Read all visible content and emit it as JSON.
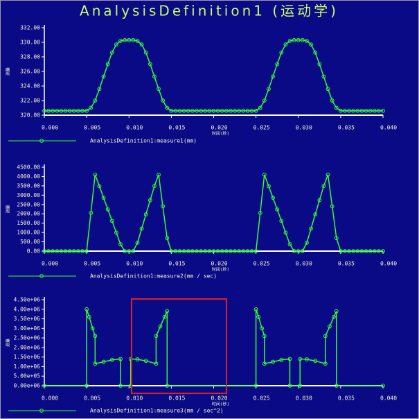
{
  "title": "AnalysisDefinition1 (运动学)",
  "chart_data": [
    {
      "type": "line",
      "xlabel": "时间(秒)",
      "ylabel": "测量",
      "x": [
        0,
        0.0005,
        0.001,
        0.0015,
        0.002,
        0.0025,
        0.003,
        0.0035,
        0.004,
        0.0045,
        0.005,
        0.0055,
        0.006,
        0.0065,
        0.007,
        0.0075,
        0.008,
        0.0085,
        0.009,
        0.0095,
        0.01,
        0.0105,
        0.011,
        0.0115,
        0.012,
        0.0125,
        0.013,
        0.0135,
        0.014,
        0.0145,
        0.015,
        0.0155,
        0.016,
        0.0165,
        0.017,
        0.0175,
        0.018,
        0.0185,
        0.019,
        0.0195,
        0.02,
        0.0205,
        0.021,
        0.0215,
        0.022,
        0.0225,
        0.023,
        0.0235,
        0.024,
        0.0245,
        0.025,
        0.0255,
        0.026,
        0.0265,
        0.027,
        0.0275,
        0.028,
        0.0285,
        0.029,
        0.0295,
        0.03,
        0.0305,
        0.031,
        0.0315,
        0.032,
        0.0325,
        0.033,
        0.0335,
        0.034,
        0.0345,
        0.035,
        0.0355,
        0.036,
        0.0365,
        0.037,
        0.0375,
        0.038,
        0.0385,
        0.039,
        0.0395,
        0.04
      ],
      "series": [
        {
          "name": "AnalysisDefinition1:measure1(mm)",
          "color": "#33ff33",
          "values": [
            320.6,
            320.6,
            320.6,
            320.6,
            320.6,
            320.6,
            320.6,
            320.6,
            320.6,
            320.6,
            320.6,
            321.0,
            322.0,
            323.6,
            325.3,
            327.0,
            328.6,
            329.7,
            330.2,
            330.3,
            330.3,
            330.3,
            330.2,
            329.7,
            328.6,
            327.0,
            325.3,
            323.6,
            322.0,
            321.0,
            320.6,
            320.6,
            320.6,
            320.6,
            320.6,
            320.6,
            320.6,
            320.6,
            320.6,
            320.6,
            320.6,
            320.6,
            320.6,
            320.6,
            320.6,
            320.6,
            320.6,
            320.6,
            320.6,
            320.6,
            320.6,
            321.0,
            322.0,
            323.6,
            325.3,
            327.0,
            328.6,
            329.7,
            330.2,
            330.3,
            330.3,
            330.3,
            330.2,
            329.7,
            328.6,
            327.0,
            325.3,
            323.6,
            322.0,
            321.0,
            320.6,
            320.6,
            320.6,
            320.6,
            320.6,
            320.6,
            320.6,
            320.6,
            320.6,
            320.6,
            320.6
          ]
        }
      ],
      "xlim": [
        0,
        0.04
      ],
      "xticks": [
        {
          "value": 0,
          "label": "0.000"
        },
        {
          "value": 0.005,
          "label": "0.005"
        },
        {
          "value": 0.01,
          "label": "0.010"
        },
        {
          "value": 0.015,
          "label": "0.015"
        },
        {
          "value": 0.02,
          "label": "0.020"
        },
        {
          "value": 0.025,
          "label": "0.025"
        },
        {
          "value": 0.03,
          "label": "0.030"
        },
        {
          "value": 0.035,
          "label": "0.035"
        },
        {
          "value": 0.04,
          "label": "0.040"
        }
      ],
      "ylim": [
        320,
        332
      ],
      "yticks": [
        {
          "value": 320,
          "label": "320.00"
        },
        {
          "value": 322,
          "label": "322.00"
        },
        {
          "value": 324,
          "label": "324.00"
        },
        {
          "value": 326,
          "label": "326.00"
        },
        {
          "value": 328,
          "label": "328.00"
        },
        {
          "value": 330,
          "label": "330.00"
        },
        {
          "value": 332,
          "label": "332.00"
        }
      ]
    },
    {
      "type": "line",
      "xlabel": "时间(秒)",
      "ylabel": "测量",
      "x": [
        0,
        0.0005,
        0.001,
        0.0015,
        0.002,
        0.0025,
        0.003,
        0.0035,
        0.004,
        0.0045,
        0.005,
        0.0055,
        0.006,
        0.0065,
        0.007,
        0.0075,
        0.008,
        0.0085,
        0.009,
        0.0095,
        0.01,
        0.0105,
        0.011,
        0.0115,
        0.012,
        0.0125,
        0.013,
        0.0135,
        0.014,
        0.0145,
        0.015,
        0.0155,
        0.016,
        0.0165,
        0.017,
        0.0175,
        0.018,
        0.0185,
        0.019,
        0.0195,
        0.02,
        0.0205,
        0.021,
        0.0215,
        0.022,
        0.0225,
        0.023,
        0.0235,
        0.024,
        0.0245,
        0.025,
        0.0255,
        0.026,
        0.0265,
        0.027,
        0.0275,
        0.028,
        0.0285,
        0.029,
        0.0295,
        0.03,
        0.0305,
        0.031,
        0.0315,
        0.032,
        0.0325,
        0.033,
        0.0335,
        0.034,
        0.0345,
        0.035,
        0.0355,
        0.036,
        0.0365,
        0.037,
        0.0375,
        0.038,
        0.0385,
        0.039,
        0.0395,
        0.04
      ],
      "series": [
        {
          "name": "AnalysisDefinition1:measure2(mm / sec)",
          "color": "#33ff33",
          "values": [
            0,
            0,
            0,
            0,
            0,
            0,
            0,
            0,
            0,
            0,
            0,
            2050,
            4100,
            3480,
            2860,
            2240,
            1620,
            990,
            370,
            0,
            0,
            0,
            450,
            1210,
            1970,
            2730,
            3490,
            4100,
            2400,
            700,
            0,
            0,
            0,
            0,
            0,
            0,
            0,
            0,
            0,
            0,
            0,
            0,
            0,
            0,
            0,
            0,
            0,
            0,
            0,
            0,
            0,
            2050,
            4100,
            3480,
            2860,
            2240,
            1620,
            990,
            370,
            0,
            0,
            0,
            450,
            1210,
            1970,
            2730,
            3490,
            4100,
            2400,
            700,
            0,
            0,
            0,
            0,
            0,
            0,
            0,
            0,
            0,
            0,
            0
          ]
        }
      ],
      "xlim": [
        0,
        0.04
      ],
      "xticks": [
        {
          "value": 0,
          "label": "0.000"
        },
        {
          "value": 0.005,
          "label": "0.005"
        },
        {
          "value": 0.01,
          "label": "0.010"
        },
        {
          "value": 0.015,
          "label": "0.015"
        },
        {
          "value": 0.02,
          "label": "0.020"
        },
        {
          "value": 0.025,
          "label": "0.025"
        },
        {
          "value": 0.03,
          "label": "0.030"
        },
        {
          "value": 0.035,
          "label": "0.035"
        },
        {
          "value": 0.04,
          "label": "0.040"
        }
      ],
      "ylim": [
        0,
        4500
      ],
      "yticks": [
        {
          "value": 0,
          "label": "0.00"
        },
        {
          "value": 500,
          "label": "500.00"
        },
        {
          "value": 1000,
          "label": "1000.00"
        },
        {
          "value": 1500,
          "label": "1500.00"
        },
        {
          "value": 2000,
          "label": "2000.00"
        },
        {
          "value": 2500,
          "label": "2500.00"
        },
        {
          "value": 3000,
          "label": "3000.00"
        },
        {
          "value": 3500,
          "label": "3500.00"
        },
        {
          "value": 4000,
          "label": "4000.00"
        },
        {
          "value": 4500,
          "label": "4500.00"
        }
      ]
    },
    {
      "type": "line",
      "xlabel": "时间(秒)",
      "ylabel": "测量",
      "x": [
        0,
        0.005,
        0.005,
        0.0053,
        0.0057,
        0.006,
        0.006,
        0.007,
        0.008,
        0.009,
        0.009,
        0.0102,
        0.0102,
        0.011,
        0.012,
        0.0132,
        0.0132,
        0.0137,
        0.0142,
        0.0145,
        0.0145,
        0.025,
        0.025,
        0.0253,
        0.0257,
        0.026,
        0.026,
        0.027,
        0.028,
        0.029,
        0.029,
        0.0302,
        0.0302,
        0.031,
        0.032,
        0.0332,
        0.0332,
        0.0337,
        0.0342,
        0.0345,
        0.0345,
        0.04
      ],
      "series": [
        {
          "name": "AnalysisDefinition1:measure3(mm / sec^2)",
          "color": "#33ff33",
          "values": [
            0,
            0,
            4000000,
            3600000,
            3000000,
            2600000,
            1150000,
            1250000,
            1350000,
            1400000,
            0,
            0,
            1400000,
            1380000,
            1300000,
            1150000,
            2600000,
            3100000,
            3600000,
            3900000,
            0,
            0,
            4000000,
            3600000,
            3000000,
            2600000,
            1150000,
            1250000,
            1350000,
            1400000,
            0,
            0,
            1400000,
            1380000,
            1300000,
            1150000,
            2600000,
            3100000,
            3600000,
            3900000,
            0,
            0
          ]
        }
      ],
      "xlim": [
        0,
        0.04
      ],
      "xticks": [
        {
          "value": 0,
          "label": "0.000"
        },
        {
          "value": 0.005,
          "label": "0.005"
        },
        {
          "value": 0.01,
          "label": "0.010"
        },
        {
          "value": 0.015,
          "label": "0.015"
        },
        {
          "value": 0.02,
          "label": "0.020"
        },
        {
          "value": 0.025,
          "label": "0.025"
        },
        {
          "value": 0.03,
          "label": "0.030"
        },
        {
          "value": 0.035,
          "label": "0.035"
        },
        {
          "value": 0.04,
          "label": "0.040"
        }
      ],
      "ylim": [
        0,
        4500000
      ],
      "yticks": [
        {
          "value": 0,
          "label": "0.00e+06"
        },
        {
          "value": 500000,
          "label": "5.00e+05"
        },
        {
          "value": 1000000,
          "label": "1.00e+06"
        },
        {
          "value": 1500000,
          "label": "1.50e+06"
        },
        {
          "value": 2000000,
          "label": "2.00e+06"
        },
        {
          "value": 2500000,
          "label": "2.50e+06"
        },
        {
          "value": 3000000,
          "label": "3.00e+06"
        },
        {
          "value": 3500000,
          "label": "3.50e+06"
        },
        {
          "value": 4000000,
          "label": "4.00e+06"
        },
        {
          "value": 4500000,
          "label": "4.50e+06"
        }
      ]
    }
  ]
}
